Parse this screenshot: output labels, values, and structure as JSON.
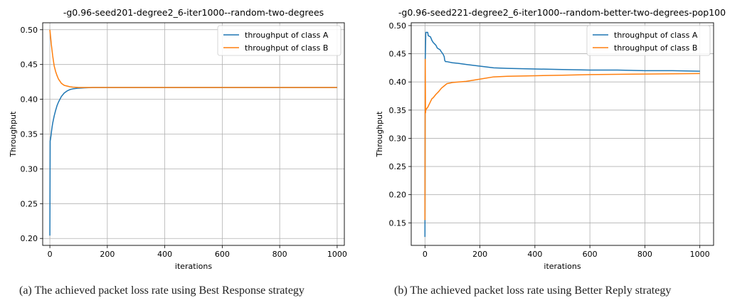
{
  "colors": {
    "class_a": "#1f77b4",
    "class_b": "#ff7f0e",
    "grid": "#b0b0b0"
  },
  "captions": [
    "(a) The achieved packet loss rate using Best Response strategy",
    "(b) The achieved packet loss rate using Better Reply strategy"
  ],
  "chart_data": [
    {
      "type": "line",
      "title": "-g0.96-seed201-degree2_6-iter1000--random-two-degrees",
      "xlabel": "iterations",
      "ylabel": "Throughput",
      "xlim": [
        -25,
        1025
      ],
      "ylim": [
        0.19,
        0.51
      ],
      "xticks": [
        0,
        200,
        400,
        600,
        800,
        1000
      ],
      "xtick_labels": [
        "0",
        "200",
        "400",
        "600",
        "800",
        "1000"
      ],
      "yticks": [
        0.2,
        0.25,
        0.3,
        0.35,
        0.4,
        0.45,
        0.5
      ],
      "ytick_labels": [
        "0.20",
        "0.25",
        "0.30",
        "0.35",
        "0.40",
        "0.45",
        "0.50"
      ],
      "grid": true,
      "legend": "top-right",
      "series": [
        {
          "name": "throughput of class A",
          "color": "#1f77b4",
          "x": [
            0,
            1,
            2,
            4,
            6,
            8,
            10,
            15,
            20,
            25,
            30,
            40,
            50,
            60,
            70,
            80,
            100,
            120,
            150,
            200,
            300,
            500,
            1000
          ],
          "y": [
            0.204,
            0.34,
            0.342,
            0.348,
            0.355,
            0.361,
            0.366,
            0.376,
            0.384,
            0.391,
            0.396,
            0.404,
            0.409,
            0.412,
            0.414,
            0.415,
            0.416,
            0.4165,
            0.417,
            0.417,
            0.417,
            0.417,
            0.417
          ]
        },
        {
          "name": "throughput of class B",
          "color": "#ff7f0e",
          "x": [
            0,
            2,
            5,
            10,
            15,
            20,
            25,
            30,
            40,
            50,
            60,
            70,
            80,
            100,
            120,
            150,
            200,
            300,
            500,
            1000
          ],
          "y": [
            0.5,
            0.492,
            0.479,
            0.462,
            0.448,
            0.44,
            0.434,
            0.429,
            0.423,
            0.42,
            0.419,
            0.418,
            0.4175,
            0.417,
            0.417,
            0.417,
            0.417,
            0.417,
            0.417,
            0.417
          ]
        }
      ]
    },
    {
      "type": "line",
      "title": "-g0.96-seed221-degree2_6-iter1000--random-better-two-degrees-pop100",
      "xlabel": "iterations",
      "ylabel": "Throughput",
      "xlim": [
        -50,
        1050
      ],
      "ylim": [
        0.11,
        0.505
      ],
      "xticks": [
        0,
        200,
        400,
        600,
        800,
        1000
      ],
      "xtick_labels": [
        "0",
        "200",
        "400",
        "600",
        "800",
        "1000"
      ],
      "yticks": [
        0.15,
        0.2,
        0.25,
        0.3,
        0.35,
        0.4,
        0.45,
        0.5
      ],
      "ytick_labels": [
        "0.15",
        "0.20",
        "0.25",
        "0.30",
        "0.35",
        "0.40",
        "0.45",
        "0.50"
      ],
      "grid": true,
      "legend": "top-right",
      "series": [
        {
          "name": "throughput of class A",
          "color": "#1f77b4",
          "x": [
            0,
            1,
            2,
            3,
            10,
            12,
            20,
            25,
            30,
            40,
            45,
            55,
            60,
            65,
            70,
            72,
            75,
            80,
            100,
            120,
            150,
            200,
            250,
            300,
            400,
            500,
            600,
            700,
            800,
            900,
            1000
          ],
          "y": [
            0.125,
            0.44,
            0.46,
            0.488,
            0.488,
            0.482,
            0.48,
            0.474,
            0.47,
            0.465,
            0.46,
            0.457,
            0.453,
            0.45,
            0.445,
            0.438,
            0.436,
            0.436,
            0.434,
            0.433,
            0.431,
            0.428,
            0.425,
            0.424,
            0.423,
            0.422,
            0.421,
            0.421,
            0.42,
            0.42,
            0.419
          ]
        },
        {
          "name": "throughput of class B",
          "color": "#ff7f0e",
          "x": [
            0,
            1,
            2,
            3,
            5,
            10,
            15,
            20,
            25,
            30,
            40,
            50,
            60,
            70,
            80,
            100,
            150,
            200,
            250,
            300,
            400,
            500,
            600,
            800,
            1000
          ],
          "y": [
            0.155,
            0.44,
            0.345,
            0.35,
            0.352,
            0.355,
            0.36,
            0.365,
            0.37,
            0.372,
            0.378,
            0.383,
            0.389,
            0.393,
            0.397,
            0.399,
            0.401,
            0.405,
            0.409,
            0.41,
            0.411,
            0.412,
            0.413,
            0.414,
            0.415
          ]
        }
      ]
    }
  ]
}
